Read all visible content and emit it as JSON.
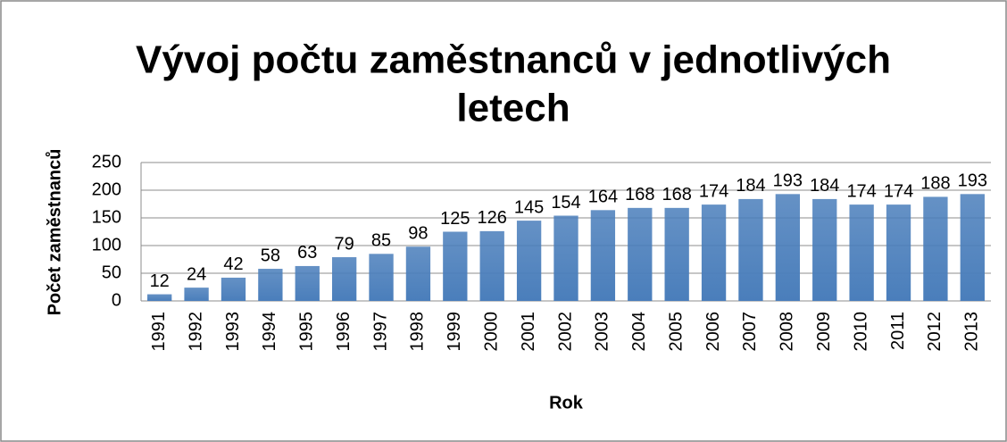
{
  "chart_data": {
    "type": "bar",
    "title_lines": [
      "Vývoj počtu zaměstnanců v jednotlivých",
      "letech"
    ],
    "x_label": "Rok",
    "y_label": "Počet zaměstnanců",
    "categories": [
      "1991",
      "1992",
      "1993",
      "1994",
      "1995",
      "1996",
      "1997",
      "1998",
      "1999",
      "2000",
      "2001",
      "2002",
      "2003",
      "2004",
      "2005",
      "2006",
      "2007",
      "2008",
      "2009",
      "2010",
      "2011",
      "2012",
      "2013"
    ],
    "values": [
      12,
      24,
      42,
      58,
      63,
      79,
      85,
      98,
      125,
      126,
      145,
      154,
      164,
      168,
      168,
      174,
      184,
      193,
      184,
      174,
      174,
      188,
      193
    ],
    "color": "#4a7ebb",
    "ylim": [
      0,
      250
    ],
    "yticks": [
      0,
      50,
      100,
      150,
      200,
      250
    ],
    "grid": true
  }
}
